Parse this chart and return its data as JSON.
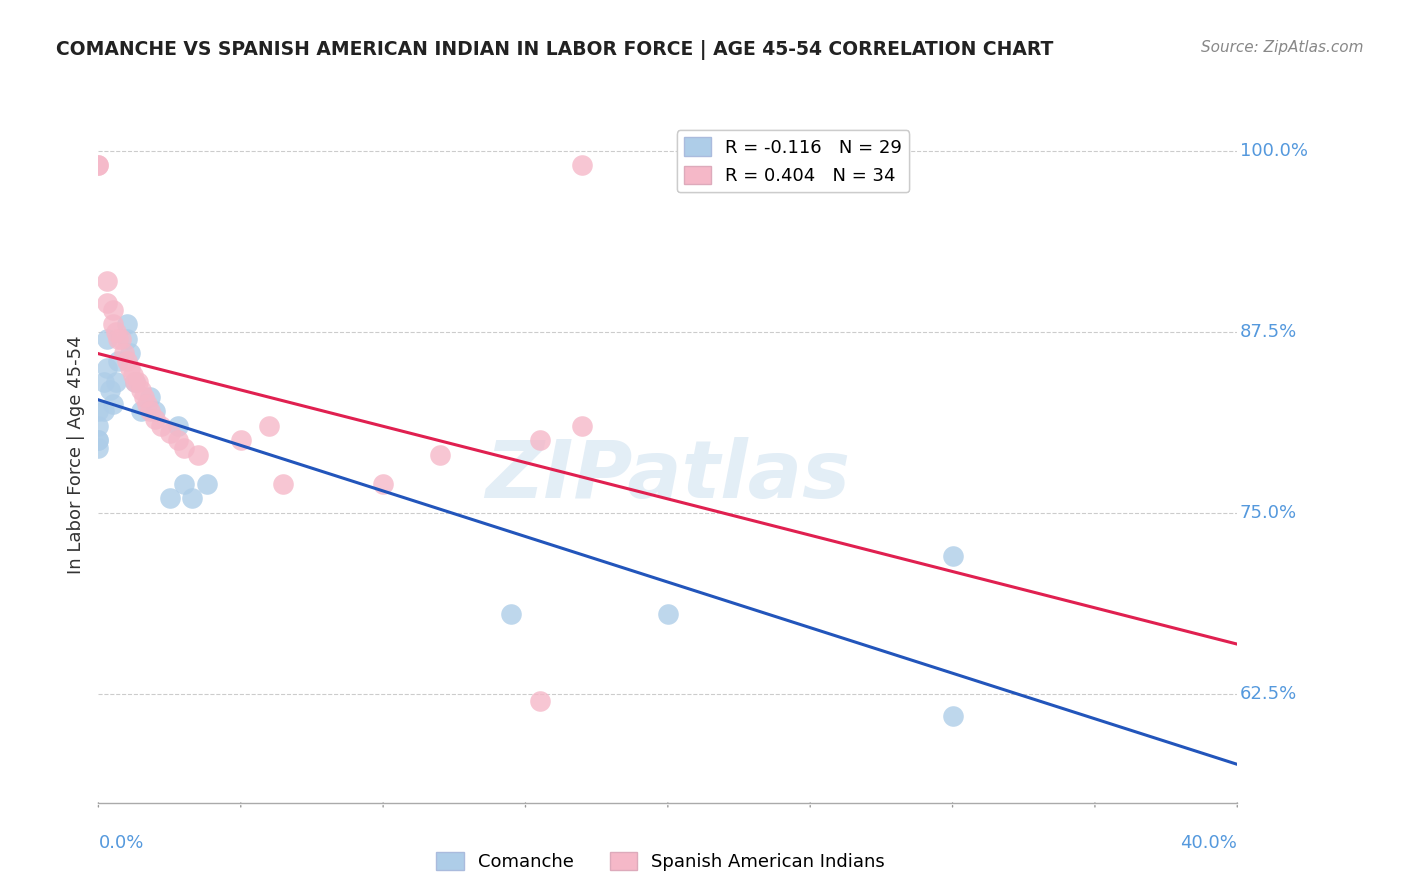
{
  "title": "COMANCHE VS SPANISH AMERICAN INDIAN IN LABOR FORCE | AGE 45-54 CORRELATION CHART",
  "source": "Source: ZipAtlas.com",
  "ylabel": "In Labor Force | Age 45-54",
  "legend_r_blue": "R = -0.116",
  "legend_n_blue": "N = 29",
  "legend_r_pink": "R = 0.404",
  "legend_n_pink": "N = 34",
  "watermark": "ZIPatlas",
  "blue_color": "#aecde8",
  "pink_color": "#f5b8c8",
  "blue_line_color": "#2255bb",
  "pink_line_color": "#e02050",
  "xmin": 0.0,
  "xmax": 0.4,
  "ymin": 0.55,
  "ymax": 1.03,
  "comanche_x": [
    0.0,
    0.0,
    0.0,
    0.0,
    0.0,
    0.002,
    0.002,
    0.003,
    0.003,
    0.004,
    0.005,
    0.006,
    0.007,
    0.01,
    0.01,
    0.011,
    0.013,
    0.015,
    0.018,
    0.02,
    0.025,
    0.028,
    0.03,
    0.033,
    0.038,
    0.145,
    0.2,
    0.3,
    0.3
  ],
  "comanche_y": [
    0.82,
    0.81,
    0.8,
    0.8,
    0.795,
    0.84,
    0.82,
    0.87,
    0.85,
    0.835,
    0.825,
    0.84,
    0.855,
    0.88,
    0.87,
    0.86,
    0.84,
    0.82,
    0.83,
    0.82,
    0.76,
    0.81,
    0.77,
    0.76,
    0.77,
    0.68,
    0.68,
    0.72,
    0.61
  ],
  "spanish_x": [
    0.0,
    0.0,
    0.003,
    0.003,
    0.005,
    0.005,
    0.006,
    0.007,
    0.008,
    0.009,
    0.01,
    0.011,
    0.012,
    0.013,
    0.014,
    0.015,
    0.016,
    0.017,
    0.018,
    0.02,
    0.022,
    0.025,
    0.028,
    0.03,
    0.035,
    0.05,
    0.06,
    0.065,
    0.1,
    0.12,
    0.155,
    0.155,
    0.17,
    0.17
  ],
  "spanish_y": [
    0.99,
    0.99,
    0.91,
    0.895,
    0.89,
    0.88,
    0.875,
    0.87,
    0.87,
    0.86,
    0.855,
    0.85,
    0.845,
    0.84,
    0.84,
    0.835,
    0.83,
    0.825,
    0.82,
    0.815,
    0.81,
    0.805,
    0.8,
    0.795,
    0.79,
    0.8,
    0.81,
    0.77,
    0.77,
    0.79,
    0.62,
    0.8,
    0.81,
    0.99
  ],
  "ytick_positions": [
    0.625,
    0.75,
    0.875,
    1.0
  ],
  "ytick_labels": [
    "62.5%",
    "75.0%",
    "87.5%",
    "100.0%"
  ],
  "xtick_label_left": "0.0%",
  "xtick_label_right": "40.0%",
  "tick_color": "#5599dd"
}
